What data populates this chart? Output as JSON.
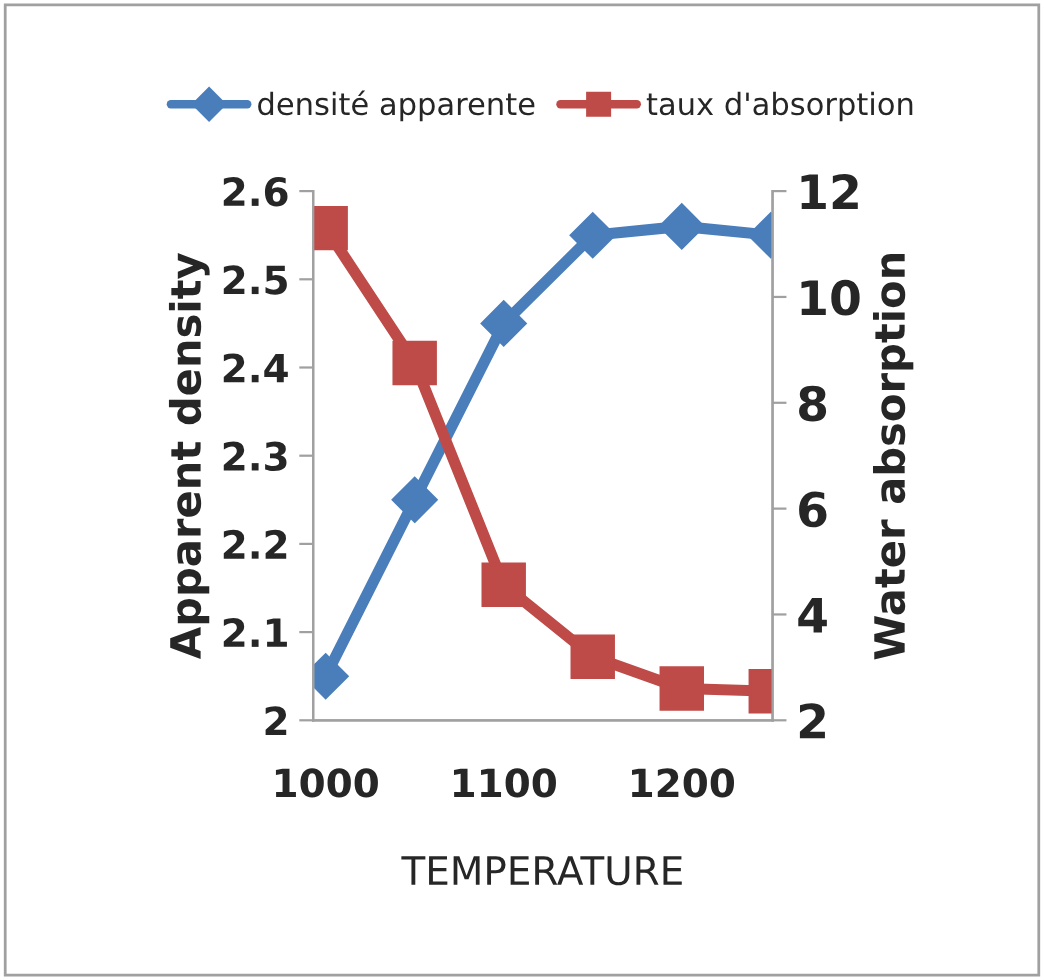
{
  "chart_data": {
    "type": "line",
    "xlabel": "TEMPERATURE",
    "ylabel": "Apparent density",
    "y2label": "Water absorption",
    "x": [
      1000,
      1050,
      1100,
      1150,
      1200,
      1250
    ],
    "series": [
      {
        "name": "densité apparente",
        "color": "#4a7ebb",
        "marker": "diamond",
        "values": [
          2.05,
          2.25,
          2.45,
          2.55,
          2.56,
          2.55
        ]
      },
      {
        "name": "taux d'absorption",
        "color": "#be4b48",
        "marker": "square",
        "axis": "y2",
        "values": [
          11.3,
          8.75,
          4.56,
          3.2,
          2.6,
          2.55
        ]
      }
    ],
    "xlim": [
      993,
      1251
    ],
    "xticks": [
      1000,
      1100,
      1200
    ],
    "ylim": [
      2,
      2.6
    ],
    "yticks": [
      2,
      2.1,
      2.2,
      2.3,
      2.4,
      2.5,
      2.6
    ],
    "y2lim": [
      2,
      12
    ],
    "y2ticks": [
      2,
      4,
      6,
      8,
      10,
      12
    ],
    "grid": false,
    "legend": "top"
  }
}
